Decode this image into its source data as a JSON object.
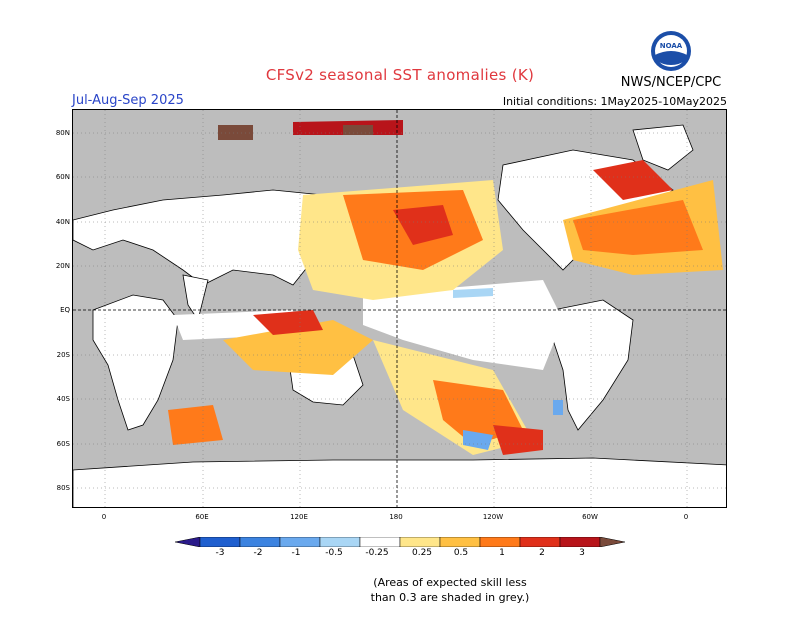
{
  "header": {
    "title": "CFSv2 seasonal SST anomalies (K)",
    "season": "Jul-Aug-Sep 2025",
    "initial_conditions": "Initial conditions: 1May2025-10May2025",
    "agency": "NWS/NCEP/CPC",
    "logo_text": "NOAA"
  },
  "axes": {
    "lat_ticks": [
      "80N",
      "60N",
      "40N",
      "20N",
      "EQ",
      "20S",
      "40S",
      "60S",
      "80S"
    ],
    "lon_ticks": [
      "0",
      "60E",
      "120E",
      "180",
      "120W",
      "60W",
      "0"
    ]
  },
  "colorbar": {
    "labels": [
      "-3",
      "-2",
      "-1",
      "-0.5",
      "-0.25",
      "0.25",
      "0.5",
      "1",
      "2",
      "3"
    ],
    "colors": [
      "#2a1a8a",
      "#1f5fcf",
      "#3c83e0",
      "#6aa9ee",
      "#a9d6f5",
      "#ffffff",
      "#ffe68a",
      "#ffc043",
      "#ff7a1a",
      "#e0301a",
      "#b8141a",
      "#7a4a3a"
    ]
  },
  "note": {
    "line1": "(Areas of expected skill less",
    "line2": "than 0.3 are shaded in grey.)"
  },
  "colors": {
    "grey_skill": "#bdbdbd",
    "land": "#ffffff",
    "title_red": "#e0383e",
    "season_blue": "#2a45c8"
  }
}
